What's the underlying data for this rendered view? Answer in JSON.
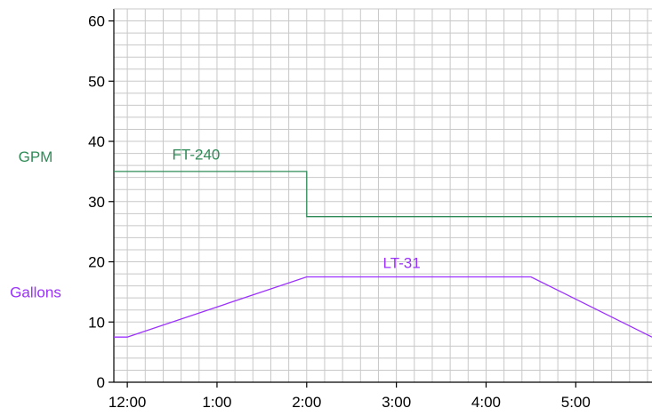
{
  "chart_data": {
    "type": "line",
    "x_axis": {
      "tick_labels": [
        "12:00",
        "1:00",
        "2:00",
        "3:00",
        "4:00",
        "5:00"
      ],
      "range_hours": [
        -0.15,
        5.85
      ]
    },
    "y_axis": {
      "tick_labels": [
        "0",
        "10",
        "20",
        "30",
        "40",
        "50",
        "60"
      ],
      "ticks": [
        0,
        10,
        20,
        30,
        40,
        50,
        60
      ],
      "range": [
        0,
        62
      ]
    },
    "grid": true,
    "grid_minor_x": 0.2,
    "grid_minor_y": 2,
    "unit_labels": [
      {
        "text": "GPM",
        "color": "#2e8b57",
        "value": 37.5
      },
      {
        "text": "Gallons",
        "color": "#9b30ff",
        "value": 15
      }
    ],
    "series": [
      {
        "name": "FT-240",
        "color": "#2e8b57",
        "label_at": [
          0.5,
          37
        ],
        "points": [
          [
            -0.15,
            35
          ],
          [
            2.0,
            35
          ],
          [
            2.0,
            27.5
          ],
          [
            5.85,
            27.5
          ]
        ]
      },
      {
        "name": "LT-31",
        "color": "#9b30ff",
        "label_at": [
          2.85,
          19
        ],
        "points": [
          [
            -0.15,
            7.5
          ],
          [
            0.0,
            7.5
          ],
          [
            2.0,
            17.5
          ],
          [
            4.5,
            17.5
          ],
          [
            5.85,
            7.5
          ]
        ]
      }
    ]
  }
}
